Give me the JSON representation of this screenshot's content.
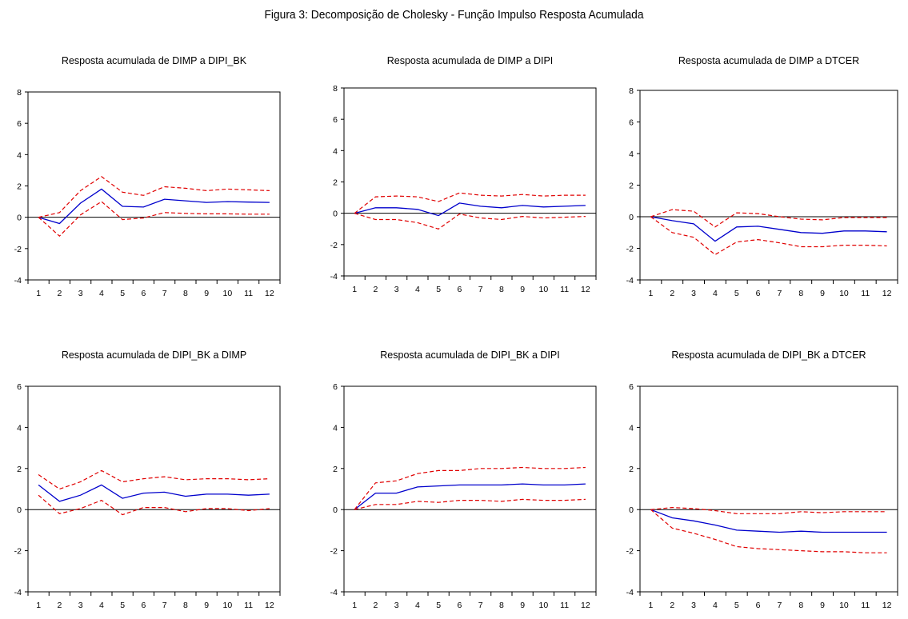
{
  "figure": {
    "title": "Figura 3: Decomposição de Cholesky - Função Impulso Resposta Acumulada"
  },
  "colors": {
    "response": "#0000cc",
    "band": "#e00000",
    "zero_line": "#000000",
    "frame": "#000000"
  },
  "chart_data": [
    {
      "type": "line",
      "title": "Resposta acumulada de DIMP a DIPI_BK",
      "x": [
        1,
        2,
        3,
        4,
        5,
        6,
        7,
        8,
        9,
        10,
        11,
        12
      ],
      "ylim": [
        -4,
        8
      ],
      "yticks": [
        -4,
        -2,
        0,
        2,
        4,
        6,
        8
      ],
      "grid": false,
      "series": [
        {
          "role": "response",
          "values": [
            0,
            -0.4,
            0.9,
            1.8,
            0.7,
            0.65,
            1.15,
            1.05,
            0.95,
            1.0,
            0.97,
            0.95
          ]
        },
        {
          "role": "upper",
          "values": [
            0,
            0.3,
            1.7,
            2.6,
            1.6,
            1.4,
            1.95,
            1.85,
            1.7,
            1.8,
            1.75,
            1.7
          ]
        },
        {
          "role": "lower",
          "values": [
            0,
            -1.2,
            0.15,
            1.0,
            -0.15,
            -0.05,
            0.3,
            0.25,
            0.22,
            0.22,
            0.2,
            0.2
          ]
        }
      ]
    },
    {
      "type": "line",
      "title": "Resposta acumulada de DIMP a DIPI",
      "x": [
        1,
        2,
        3,
        4,
        5,
        6,
        7,
        8,
        9,
        10,
        11,
        12
      ],
      "ylim": [
        -4,
        8
      ],
      "yticks": [
        -4,
        -2,
        0,
        2,
        4,
        6,
        8
      ],
      "grid": false,
      "series": [
        {
          "role": "response",
          "values": [
            0,
            0.35,
            0.35,
            0.25,
            -0.15,
            0.65,
            0.45,
            0.35,
            0.5,
            0.4,
            0.45,
            0.5
          ]
        },
        {
          "role": "upper",
          "values": [
            0,
            1.05,
            1.1,
            1.05,
            0.75,
            1.3,
            1.15,
            1.1,
            1.2,
            1.1,
            1.15,
            1.15
          ]
        },
        {
          "role": "lower",
          "values": [
            0,
            -0.4,
            -0.4,
            -0.6,
            -1.0,
            -0.05,
            -0.3,
            -0.4,
            -0.2,
            -0.3,
            -0.25,
            -0.2
          ]
        }
      ]
    },
    {
      "type": "line",
      "title": "Resposta acumulada de DIMP a DTCER",
      "x": [
        1,
        2,
        3,
        4,
        5,
        6,
        7,
        8,
        9,
        10,
        11,
        12
      ],
      "ylim": [
        -4,
        8
      ],
      "yticks": [
        -4,
        -2,
        0,
        2,
        4,
        6,
        8
      ],
      "grid": false,
      "series": [
        {
          "role": "response",
          "values": [
            0,
            -0.25,
            -0.45,
            -1.55,
            -0.65,
            -0.6,
            -0.8,
            -1.0,
            -1.05,
            -0.9,
            -0.9,
            -0.95
          ]
        },
        {
          "role": "upper",
          "values": [
            0,
            0.45,
            0.35,
            -0.65,
            0.25,
            0.2,
            0.0,
            -0.15,
            -0.2,
            -0.05,
            -0.05,
            -0.05
          ]
        },
        {
          "role": "lower",
          "values": [
            0,
            -1.0,
            -1.3,
            -2.4,
            -1.6,
            -1.45,
            -1.65,
            -1.9,
            -1.9,
            -1.8,
            -1.8,
            -1.85
          ]
        }
      ]
    },
    {
      "type": "line",
      "title": "Resposta acumulada de DIPI_BK a DIMP",
      "x": [
        1,
        2,
        3,
        4,
        5,
        6,
        7,
        8,
        9,
        10,
        11,
        12
      ],
      "ylim": [
        -4,
        6
      ],
      "yticks": [
        -4,
        -2,
        0,
        2,
        4,
        6
      ],
      "grid": false,
      "series": [
        {
          "role": "response",
          "values": [
            1.2,
            0.4,
            0.7,
            1.2,
            0.55,
            0.8,
            0.85,
            0.65,
            0.75,
            0.75,
            0.7,
            0.75
          ]
        },
        {
          "role": "upper",
          "values": [
            1.7,
            1.0,
            1.35,
            1.9,
            1.35,
            1.5,
            1.6,
            1.45,
            1.5,
            1.5,
            1.45,
            1.5
          ]
        },
        {
          "role": "lower",
          "values": [
            0.7,
            -0.2,
            0.05,
            0.45,
            -0.25,
            0.1,
            0.1,
            -0.1,
            0.05,
            0.05,
            -0.05,
            0.05
          ]
        }
      ]
    },
    {
      "type": "line",
      "title": "Resposta acumulada de DIPI_BK a DIPI",
      "x": [
        1,
        2,
        3,
        4,
        5,
        6,
        7,
        8,
        9,
        10,
        11,
        12
      ],
      "ylim": [
        -4,
        6
      ],
      "yticks": [
        -4,
        -2,
        0,
        2,
        4,
        6
      ],
      "grid": false,
      "series": [
        {
          "role": "response",
          "values": [
            0,
            0.8,
            0.8,
            1.1,
            1.15,
            1.2,
            1.2,
            1.2,
            1.25,
            1.2,
            1.2,
            1.25
          ]
        },
        {
          "role": "upper",
          "values": [
            0,
            1.3,
            1.4,
            1.75,
            1.9,
            1.9,
            2.0,
            2.0,
            2.05,
            2.0,
            2.0,
            2.05
          ]
        },
        {
          "role": "lower",
          "values": [
            0,
            0.25,
            0.25,
            0.4,
            0.35,
            0.45,
            0.45,
            0.4,
            0.5,
            0.45,
            0.45,
            0.5
          ]
        }
      ]
    },
    {
      "type": "line",
      "title": "Resposta acumulada de DIPI_BK a DTCER",
      "x": [
        1,
        2,
        3,
        4,
        5,
        6,
        7,
        8,
        9,
        10,
        11,
        12
      ],
      "ylim": [
        -4,
        6
      ],
      "yticks": [
        -4,
        -2,
        0,
        2,
        4,
        6
      ],
      "grid": false,
      "series": [
        {
          "role": "response",
          "values": [
            0,
            -0.4,
            -0.55,
            -0.75,
            -1.0,
            -1.05,
            -1.1,
            -1.05,
            -1.1,
            -1.1,
            -1.1,
            -1.1
          ]
        },
        {
          "role": "upper",
          "values": [
            0,
            0.1,
            0.05,
            -0.05,
            -0.2,
            -0.2,
            -0.2,
            -0.1,
            -0.15,
            -0.1,
            -0.1,
            -0.1
          ]
        },
        {
          "role": "lower",
          "values": [
            0,
            -0.9,
            -1.15,
            -1.45,
            -1.8,
            -1.9,
            -1.95,
            -2.0,
            -2.05,
            -2.05,
            -2.1,
            -2.1
          ]
        }
      ]
    }
  ]
}
